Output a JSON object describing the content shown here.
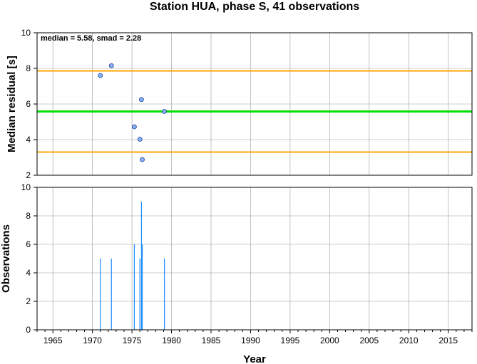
{
  "chart_data": [
    {
      "type": "scatter",
      "title": "Station HUA, phase S, 41 observations",
      "ylabel": "Median residual [s]",
      "xlim": [
        1963,
        2018
      ],
      "ylim": [
        2,
        10
      ],
      "grid": true,
      "annotation": "median = 5.58, smad = 2.28",
      "reference_lines": [
        {
          "y": 5.58,
          "color": "#00e000"
        },
        {
          "y": 7.86,
          "color": "#ffa500"
        },
        {
          "y": 3.3,
          "color": "#ffa500"
        }
      ],
      "points": {
        "x": [
          1971.0,
          1972.4,
          1975.3,
          1976.0,
          1976.2,
          1976.3,
          1979.1
        ],
        "y": [
          7.6,
          8.15,
          4.72,
          4.02,
          6.25,
          2.88,
          5.58
        ]
      },
      "x_ticks": [
        "1965",
        "1970",
        "1975",
        "1980",
        "1985",
        "1990",
        "1995",
        "2000",
        "2005",
        "2010",
        "2015"
      ],
      "y_ticks": [
        "2",
        "4",
        "6",
        "8",
        "10"
      ],
      "marker_color": "#87aff5"
    },
    {
      "type": "bar",
      "ylabel": "Observations",
      "xlabel": "Year",
      "xlim": [
        1963,
        2018
      ],
      "ylim": [
        0,
        10
      ],
      "grid": true,
      "bars": {
        "x": [
          1971.0,
          1972.4,
          1975.3,
          1976.0,
          1976.2,
          1976.3,
          1979.1
        ],
        "values": [
          5,
          5,
          6,
          5,
          9,
          6,
          5
        ]
      },
      "x_ticks": [
        "1965",
        "1970",
        "1975",
        "1980",
        "1985",
        "1990",
        "1995",
        "2000",
        "2005",
        "2010",
        "2015"
      ],
      "y_ticks": [
        "0",
        "2",
        "4",
        "6",
        "8",
        "10"
      ],
      "bar_color": "#1e8cff"
    }
  ]
}
